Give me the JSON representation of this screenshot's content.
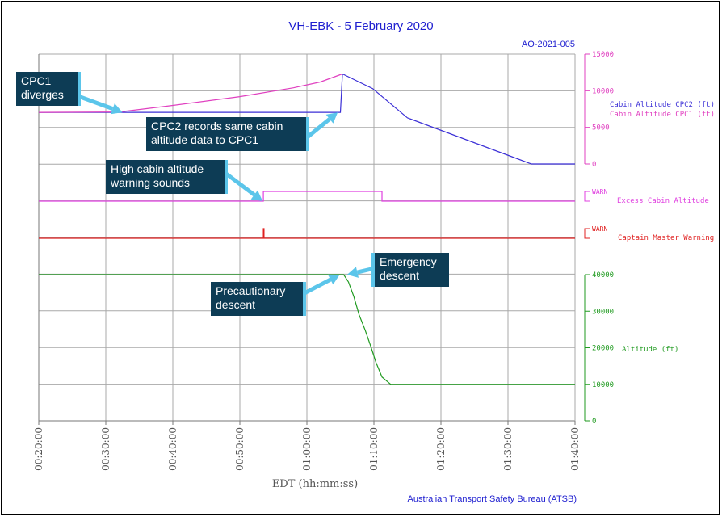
{
  "chart_data": {
    "type": "line",
    "title": "VH-EBK - 5 February 2020",
    "report_id": "AO-2021-005",
    "xlabel": "EDT (hh:mm:ss)",
    "source": "Australian Transport Safety Bureau (ATSB)",
    "x_ticks": [
      "00:20:00",
      "00:30:00",
      "00:40:00",
      "00:50:00",
      "01:00:00",
      "01:10:00",
      "01:20:00",
      "01:30:00",
      "01:40:00"
    ],
    "xlim_minutes": [
      20,
      100
    ],
    "grid": true,
    "cabin_axis": {
      "ticks": [
        "15000",
        "10000",
        "5000",
        "0"
      ],
      "ylim": [
        0,
        15000
      ]
    },
    "altitude_axis": {
      "ticks": [
        "40000",
        "30000",
        "20000",
        "10000",
        "0"
      ],
      "ylim": [
        0,
        40000
      ]
    },
    "series": [
      {
        "name": "Cabin Altitude  CPC2  (ft)",
        "color": "#3b2fd6",
        "axis": "cabin",
        "x_minutes": [
          20,
          65,
          65.3,
          69.8,
          75,
          93.5,
          100
        ],
        "values": [
          7050,
          7050,
          12300,
          10300,
          6300,
          0,
          0
        ]
      },
      {
        "name": "Cabin Altitude  CPC1  (ft)",
        "color": "#e040c0",
        "axis": "cabin",
        "x_minutes": [
          20,
          32,
          40,
          50,
          58,
          62,
          65.3
        ],
        "values": [
          7050,
          7100,
          8000,
          9200,
          10400,
          11200,
          12300
        ]
      },
      {
        "name": "Excess Cabin Altitude",
        "color": "#e040e0",
        "axis": "discrete_excess",
        "warn_label": "WARN",
        "x_minutes": [
          20,
          53.5,
          53.5,
          71.2,
          71.2,
          100
        ],
        "values": [
          0,
          0,
          1,
          1,
          0,
          0
        ]
      },
      {
        "name": "Captain Master Warning",
        "color": "#e02020",
        "axis": "discrete_master",
        "warn_label": "WARN",
        "x_minutes": [
          20,
          53.5,
          53.5,
          53.6,
          53.6,
          100
        ],
        "values": [
          0,
          0,
          1,
          1,
          0,
          0
        ]
      },
      {
        "name": "Altitude (ft)",
        "color": "#1f9a1f",
        "axis": "altitude",
        "x_minutes": [
          20,
          65.5,
          66.2,
          67,
          67.8,
          68.7,
          69.5,
          70.3,
          71.2,
          72.5,
          75,
          100
        ],
        "values": [
          40000,
          40000,
          38000,
          34000,
          29000,
          24800,
          20500,
          16000,
          12000,
          10000,
          10000,
          10000
        ]
      }
    ],
    "annotations": [
      {
        "text": "CPC1\ndiverges",
        "target_minutes": 32.5,
        "target_value": 7050,
        "target_axis": "cabin"
      },
      {
        "text": "CPC2 records same cabin\naltitude data to CPC1",
        "target_minutes": 64.6,
        "target_value": 7050,
        "target_axis": "cabin"
      },
      {
        "text": "High cabin altitude\nwarning sounds",
        "target_minutes": 53.4,
        "target_value": 0,
        "target_axis": "discrete_excess"
      },
      {
        "text": "Precautionary\ndescent",
        "target_minutes": 64.9,
        "target_value": 40000,
        "target_axis": "altitude"
      },
      {
        "text": "Emergency\ndescent",
        "target_minutes": 66.0,
        "target_value": 40000,
        "target_axis": "altitude"
      }
    ]
  }
}
